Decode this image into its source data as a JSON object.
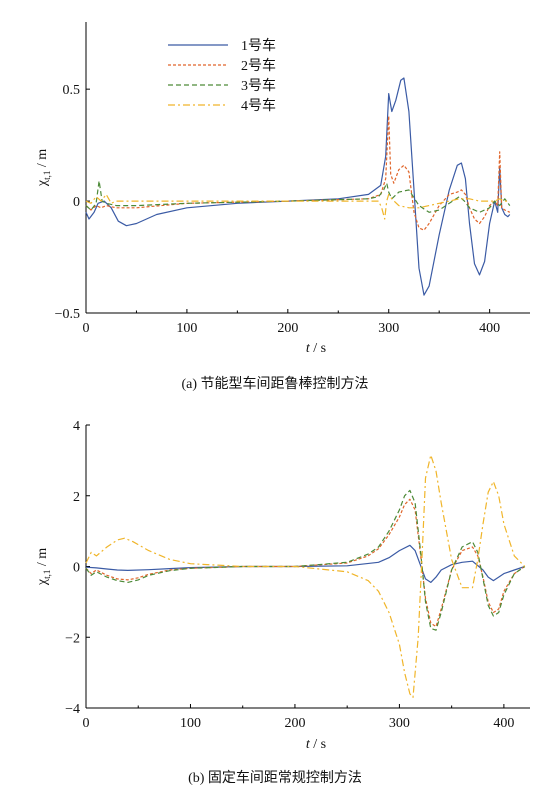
{
  "chart_data": [
    {
      "type": "line",
      "caption": "(a)  节能型车间距鲁棒控制方法",
      "xlabel_t": "t",
      "xlabel_unit": "/ s",
      "ylabel_sym": "χ",
      "ylabel_sub": "t,1",
      "ylabel_unit": "/ m",
      "xlim": [
        0,
        440
      ],
      "ylim": [
        -0.5,
        0.8
      ],
      "xticks": [
        0,
        100,
        200,
        300,
        400
      ],
      "yticks": [
        -0.5,
        0,
        0.5
      ],
      "ytick_labels": [
        "−0.5",
        "0",
        "0.5"
      ],
      "legend_placement": "top-left",
      "series": [
        {
          "name": "1号车",
          "color": "#3b5ba5",
          "dash": "",
          "x": [
            0,
            3,
            8,
            12,
            18,
            25,
            32,
            40,
            50,
            70,
            100,
            150,
            200,
            250,
            280,
            292,
            297,
            300,
            303,
            307,
            312,
            315,
            320,
            325,
            330,
            335,
            340,
            350,
            360,
            368,
            372,
            376,
            380,
            385,
            390,
            395,
            400,
            405,
            408,
            410,
            412,
            415,
            418,
            420
          ],
          "y": [
            -0.05,
            -0.08,
            -0.05,
            -0.01,
            0.0,
            -0.03,
            -0.09,
            -0.11,
            -0.1,
            -0.06,
            -0.03,
            -0.01,
            0.0,
            0.01,
            0.03,
            0.07,
            0.2,
            0.48,
            0.4,
            0.45,
            0.54,
            0.55,
            0.4,
            0.05,
            -0.3,
            -0.42,
            -0.38,
            -0.15,
            0.05,
            0.16,
            0.17,
            0.1,
            -0.1,
            -0.28,
            -0.33,
            -0.27,
            -0.1,
            0.0,
            -0.05,
            0.15,
            -0.03,
            -0.06,
            -0.07,
            -0.06
          ]
        },
        {
          "name": "2号车",
          "color": "#e0652a",
          "dash": "3,2",
          "x": [
            0,
            5,
            10,
            15,
            20,
            30,
            50,
            100,
            200,
            280,
            292,
            297,
            300,
            302,
            305,
            310,
            315,
            320,
            325,
            330,
            335,
            340,
            350,
            360,
            368,
            372,
            376,
            380,
            385,
            390,
            395,
            400,
            405,
            408,
            410,
            412,
            415,
            420
          ],
          "y": [
            -0.02,
            -0.04,
            -0.02,
            -0.03,
            -0.02,
            -0.03,
            -0.03,
            -0.01,
            0.0,
            0.01,
            0.03,
            0.1,
            0.38,
            0.12,
            0.08,
            0.14,
            0.16,
            0.13,
            -0.05,
            -0.12,
            -0.13,
            -0.1,
            -0.02,
            0.03,
            0.04,
            0.05,
            0.03,
            -0.03,
            -0.08,
            -0.1,
            -0.07,
            -0.02,
            0.0,
            -0.02,
            0.22,
            -0.03,
            -0.04,
            -0.05
          ]
        },
        {
          "name": "3号车",
          "color": "#4d8a38",
          "dash": "5,3",
          "x": [
            0,
            5,
            10,
            13,
            16,
            20,
            30,
            50,
            100,
            200,
            280,
            290,
            295,
            298,
            300,
            303,
            310,
            320,
            330,
            340,
            350,
            360,
            370,
            375,
            380,
            390,
            400,
            405,
            410,
            415,
            420
          ],
          "y": [
            -0.02,
            -0.04,
            -0.01,
            0.09,
            0.0,
            -0.01,
            -0.02,
            -0.02,
            -0.01,
            0.0,
            0.01,
            0.02,
            0.05,
            0.08,
            0.04,
            0.01,
            0.04,
            0.05,
            -0.02,
            -0.05,
            -0.04,
            -0.01,
            0.02,
            0.0,
            -0.03,
            -0.05,
            -0.03,
            0.0,
            -0.02,
            0.01,
            -0.02
          ]
        },
        {
          "name": "4号车",
          "color": "#f0b52a",
          "dash": "7,3,2,3",
          "x": [
            0,
            5,
            10,
            15,
            20,
            25,
            30,
            50,
            100,
            200,
            280,
            290,
            293,
            296,
            298,
            300,
            303,
            310,
            320,
            330,
            340,
            350,
            360,
            370,
            380,
            390,
            400,
            405,
            410,
            415,
            420
          ],
          "y": [
            0.0,
            -0.01,
            0.02,
            0.0,
            0.03,
            -0.01,
            0.0,
            0.0,
            0.0,
            0.0,
            0.0,
            0.0,
            -0.03,
            -0.08,
            0.0,
            0.03,
            0.01,
            -0.02,
            -0.03,
            -0.03,
            -0.02,
            -0.01,
            0.0,
            0.01,
            0.01,
            0.0,
            0.0,
            0.0,
            0.01,
            0.0,
            0.0
          ]
        }
      ]
    },
    {
      "type": "line",
      "caption": "(b)  固定车间距常规控制方法",
      "xlabel_t": "t",
      "xlabel_unit": "/ s",
      "ylabel_sym": "χ",
      "ylabel_sub": "t,1",
      "ylabel_unit": "/ m",
      "xlim": [
        0,
        425
      ],
      "ylim": [
        -4,
        4
      ],
      "xticks": [
        0,
        100,
        200,
        300,
        400
      ],
      "yticks": [
        -4,
        -2,
        0,
        2,
        4
      ],
      "ytick_labels": [
        "−4",
        "−2",
        "0",
        "2",
        "4"
      ],
      "series": [
        {
          "name": "1号车",
          "color": "#3b5ba5",
          "dash": "",
          "x": [
            0,
            10,
            20,
            30,
            40,
            60,
            80,
            100,
            150,
            200,
            250,
            280,
            290,
            300,
            310,
            315,
            320,
            325,
            330,
            335,
            340,
            350,
            360,
            370,
            380,
            385,
            390,
            395,
            400,
            410,
            420
          ],
          "y": [
            -0.02,
            -0.04,
            -0.07,
            -0.1,
            -0.11,
            -0.09,
            -0.06,
            -0.03,
            0.0,
            0.0,
            0.02,
            0.12,
            0.25,
            0.45,
            0.6,
            0.45,
            0.05,
            -0.35,
            -0.45,
            -0.3,
            -0.1,
            0.05,
            0.12,
            0.15,
            -0.1,
            -0.3,
            -0.4,
            -0.3,
            -0.2,
            -0.1,
            0.0
          ]
        },
        {
          "name": "2号车",
          "color": "#e0652a",
          "dash": "3,2",
          "x": [
            0,
            5,
            10,
            20,
            30,
            40,
            50,
            60,
            80,
            100,
            150,
            200,
            250,
            270,
            280,
            290,
            300,
            305,
            310,
            315,
            320,
            325,
            330,
            335,
            340,
            350,
            360,
            370,
            375,
            380,
            385,
            390,
            395,
            400,
            410,
            420
          ],
          "y": [
            -0.05,
            -0.2,
            -0.1,
            -0.25,
            -0.35,
            -0.38,
            -0.32,
            -0.22,
            -0.1,
            -0.05,
            0.0,
            0.0,
            0.1,
            0.3,
            0.5,
            0.9,
            1.4,
            1.75,
            1.9,
            1.6,
            0.4,
            -0.9,
            -1.6,
            -1.7,
            -1.2,
            -0.1,
            0.45,
            0.55,
            0.3,
            -0.3,
            -1.0,
            -1.3,
            -1.2,
            -0.7,
            -0.2,
            0.0
          ]
        },
        {
          "name": "3号车",
          "color": "#4d8a38",
          "dash": "5,3",
          "x": [
            0,
            5,
            10,
            20,
            30,
            40,
            50,
            60,
            80,
            100,
            150,
            200,
            250,
            270,
            280,
            290,
            300,
            305,
            310,
            315,
            320,
            325,
            330,
            335,
            340,
            350,
            360,
            370,
            375,
            380,
            385,
            390,
            395,
            400,
            410,
            420
          ],
          "y": [
            -0.05,
            -0.25,
            -0.15,
            -0.3,
            -0.4,
            -0.45,
            -0.38,
            -0.25,
            -0.12,
            -0.05,
            0.0,
            0.0,
            0.12,
            0.35,
            0.55,
            1.0,
            1.6,
            2.0,
            2.15,
            1.8,
            0.5,
            -1.0,
            -1.75,
            -1.8,
            -1.3,
            -0.1,
            0.55,
            0.7,
            0.4,
            -0.35,
            -1.1,
            -1.4,
            -1.3,
            -0.8,
            -0.2,
            0.0
          ]
        },
        {
          "name": "4号车",
          "color": "#f0b52a",
          "dash": "7,3,2,3",
          "x": [
            0,
            5,
            10,
            20,
            30,
            37,
            45,
            60,
            80,
            100,
            150,
            200,
            250,
            270,
            280,
            290,
            300,
            305,
            310,
            313,
            318,
            322,
            325,
            330,
            335,
            340,
            350,
            360,
            370,
            375,
            380,
            385,
            390,
            395,
            400,
            410,
            420
          ],
          "y": [
            0.1,
            0.4,
            0.3,
            0.55,
            0.75,
            0.8,
            0.7,
            0.45,
            0.2,
            0.08,
            0.0,
            0.0,
            -0.15,
            -0.4,
            -0.7,
            -1.3,
            -2.2,
            -3.0,
            -3.6,
            -3.7,
            -2.0,
            0.5,
            2.5,
            3.15,
            2.7,
            1.8,
            0.2,
            -0.6,
            -0.6,
            0.2,
            1.2,
            2.1,
            2.4,
            2.0,
            1.2,
            0.3,
            0.0
          ]
        }
      ]
    }
  ]
}
